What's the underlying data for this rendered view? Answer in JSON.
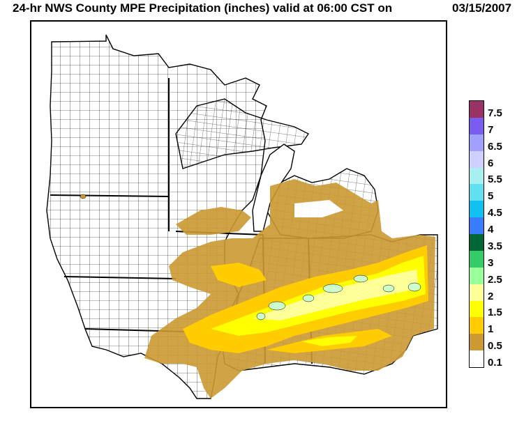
{
  "title": {
    "main": "24-hr NWS County MPE Precipitation (inches) valid at 06:00 CST on",
    "date": "03/15/2007"
  },
  "legend": {
    "items": [
      {
        "label": "7.5",
        "color": "#993366"
      },
      {
        "label": "7",
        "color": "#7a5cf0"
      },
      {
        "label": "6.5",
        "color": "#a0a0ff"
      },
      {
        "label": "6",
        "color": "#d0d0ff"
      },
      {
        "label": "5.5",
        "color": "#a8f0f0"
      },
      {
        "label": "5",
        "color": "#60e0f0"
      },
      {
        "label": "4.5",
        "color": "#10c0f0"
      },
      {
        "label": "4",
        "color": "#3a7cff"
      },
      {
        "label": "3.5",
        "color": "#006633"
      },
      {
        "label": "3",
        "color": "#33cc66"
      },
      {
        "label": "2.5",
        "color": "#99ff99"
      },
      {
        "label": "2",
        "color": "#ffff99"
      },
      {
        "label": "1.5",
        "color": "#ffff00"
      },
      {
        "label": "1",
        "color": "#ffcc00"
      },
      {
        "label": "0.5",
        "color": "#cc9933"
      },
      {
        "label": "0.1",
        "color": "#ffffff"
      }
    ]
  },
  "map": {
    "land_color": "#ffffff",
    "border_color": "#000000"
  }
}
